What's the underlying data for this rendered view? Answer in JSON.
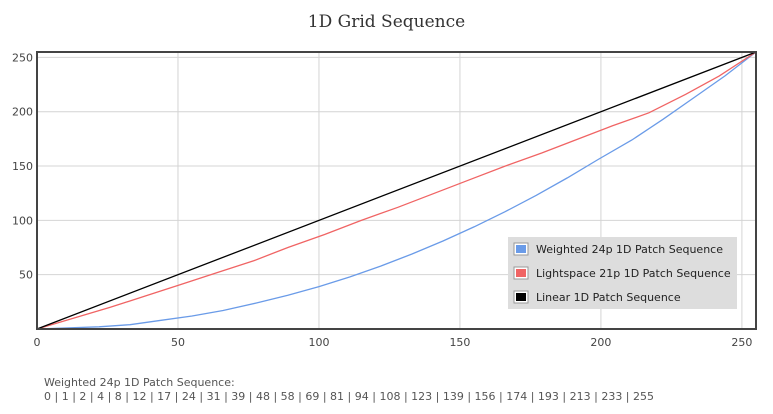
{
  "chart_data": {
    "type": "line",
    "title": "1D Grid Sequence",
    "xlabel": "",
    "ylabel": "",
    "xlim": [
      0,
      255
    ],
    "ylim": [
      0,
      255
    ],
    "x_ticks": [
      0,
      50,
      100,
      150,
      200,
      250
    ],
    "y_ticks": [
      50,
      100,
      150,
      200,
      250
    ],
    "grid": true,
    "legend_position": "bottom-right",
    "series": [
      {
        "name": "Weighted 24p 1D Patch Sequence",
        "color": "#6a9be8",
        "x": [
          0,
          11,
          22,
          33,
          44,
          55,
          66,
          78,
          89,
          100,
          111,
          122,
          133,
          144,
          155,
          166,
          177,
          188,
          199,
          211,
          222,
          233,
          244,
          255
        ],
        "y": [
          0,
          1,
          2,
          4,
          8,
          12,
          17,
          24,
          31,
          39,
          48,
          58,
          69,
          81,
          94,
          108,
          123,
          139,
          156,
          174,
          193,
          213,
          233,
          255
        ]
      },
      {
        "name": "Lightspace 21p 1D Patch Sequence",
        "color": "#f06464",
        "x": [
          0,
          13,
          26,
          38,
          51,
          64,
          77,
          89,
          102,
          115,
          128,
          140,
          153,
          166,
          179,
          191,
          204,
          217,
          230,
          242,
          255
        ],
        "y": [
          0,
          10,
          20,
          30,
          41,
          52,
          63,
          75,
          87,
          100,
          112,
          124,
          137,
          150,
          162,
          174,
          187,
          199,
          216,
          233,
          255
        ]
      },
      {
        "name": "Linear 1D Patch Sequence",
        "color": "#000000",
        "x": [
          0,
          255
        ],
        "y": [
          0,
          255
        ]
      }
    ]
  },
  "footer": {
    "label": "Weighted 24p 1D Patch Sequence:",
    "values": "0 | 1 | 2 | 4 | 8 | 12 | 17 | 24 | 31 | 39 | 48 | 58 | 69 | 81 | 94 | 108 | 123 | 139 | 156 | 174 | 193 | 213 | 233 | 255"
  }
}
